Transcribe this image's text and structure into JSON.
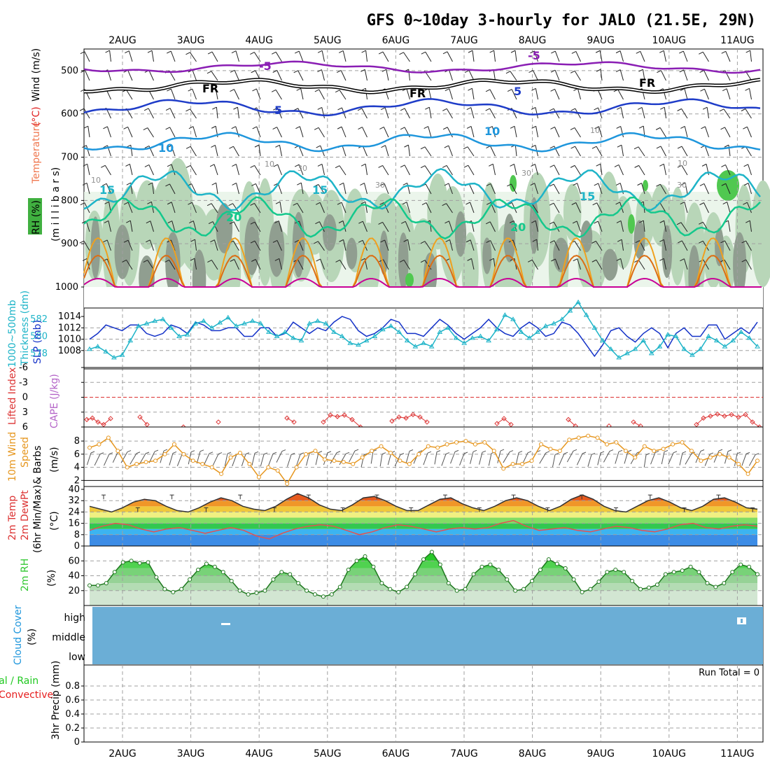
{
  "title": "GFS 0~10day 3-hourly for JALO (21.5E, 29N)",
  "colors": {
    "bg": "#ffffff",
    "frame": "#000000",
    "grid": "#a0a0a0",
    "rh_fill_light": "#e6f2e6",
    "rh_fill_mid": "#b8d6b8",
    "rh_fill_dark": "#909e90",
    "rh_fill_green": "#50c850",
    "iso_purple": "#8a1eb4",
    "iso_black": "#000000",
    "iso_blue": "#1e3cc8",
    "iso_sky": "#1e96dc",
    "iso_cyan": "#1eb4c8",
    "iso_teal": "#14c88c",
    "iso_orange": "#f0a01e",
    "iso_darkorange": "#dc6e14",
    "iso_magenta": "#c80096",
    "slp": "#1432c8",
    "thickness": "#1eb4c8",
    "lifted": "#dc3232",
    "cape": "#b464c8",
    "wind10": "#e6961e",
    "temp_top": "#c81414",
    "rh2m_green": "#32d232",
    "cloud_blue": "#6baed6",
    "precip_green": "#1ec81e",
    "precip_red": "#e61e1e"
  },
  "dates": [
    "2AUG",
    "3AUG",
    "4AUG",
    "5AUG",
    "6AUG",
    "7AUG",
    "8AUG",
    "9AUG",
    "10AUG",
    "11AUG"
  ],
  "panels": {
    "upper": {
      "label_rh": "RH (%)",
      "label_temp": "Temperature",
      "label_temp_unit": "(°C)",
      "label_wind": "Wind (m/s)",
      "label_pres": "(m i l l i b a r s)",
      "yticks": [
        "500",
        "600",
        "700",
        "800",
        "900",
        "1000"
      ],
      "contour_labels": {
        "m5": "-5",
        "fr": "FR",
        "p5": "5",
        "p10": "10",
        "p15": "15",
        "p20": "20",
        "rh10": "10",
        "rh30": "30"
      }
    },
    "slp": {
      "label_thick": "1000~500mb",
      "label_thick2": "Thickness (dm)",
      "label_slp": "SLP (mb)",
      "yticks_left": [
        "582",
        "580",
        "578"
      ],
      "yticks_right": [
        "1014",
        "1012",
        "1010",
        "1008"
      ]
    },
    "lifted": {
      "label_li": "Lifted Index",
      "label_cape": "CAPE (J/kg)",
      "yticks": [
        "-6",
        "-3",
        "0",
        "3",
        "6"
      ]
    },
    "wind10": {
      "label_1": "10m Wind",
      "label_2": "Speed",
      "label_3": "& Barbs",
      "label_unit": "(m/s)",
      "yticks": [
        "8",
        "6",
        "4",
        "2"
      ]
    },
    "temp": {
      "label_1": "2m Temp",
      "label_2": "2m DewPt",
      "label_3": "(6hr Min/Max)",
      "label_unit": "(°C)",
      "yticks": [
        "40",
        "32",
        "24",
        "16",
        "8",
        "0"
      ]
    },
    "rh2m": {
      "label_1": "2m RH",
      "label_unit": "(%)",
      "yticks": [
        "60",
        "40",
        "20"
      ]
    },
    "cloud": {
      "label_1": "Cloud Cover",
      "label_unit": "(%)",
      "levels": [
        "high",
        "middle",
        "low"
      ]
    },
    "precip": {
      "label_1": "Total / Rain",
      "label_2": "Convective",
      "label_3": "3hr Precip (mm)",
      "run_total": "Run Total = 0",
      "yticks": [
        "0.8",
        "0.6",
        "0.4",
        "0.2",
        "0"
      ]
    }
  },
  "chart_data": {
    "type": "line",
    "title": "GFS 0~10day 3-hourly for JALO (21.5E, 29N)",
    "x_categories": [
      "2AUG",
      "3AUG",
      "4AUG",
      "5AUG",
      "6AUG",
      "7AUG",
      "8AUG",
      "9AUG",
      "10AUG",
      "11AUG"
    ],
    "slp_mb": [
      1010,
      1011,
      1012.5,
      1012,
      1011.5,
      1012.5,
      1012.5,
      1011,
      1010.5,
      1011,
      1012.5,
      1012,
      1011,
      1013,
      1012.5,
      1011.5,
      1011.5,
      1012,
      1012,
      1010.5,
      1010.5,
      1012,
      1012,
      1010.5,
      1011,
      1013,
      1012,
      1011,
      1012,
      1011.5,
      1013,
      1014,
      1013.5,
      1011.5,
      1010.5,
      1011,
      1012,
      1013.5,
      1013,
      1011,
      1011,
      1010.5,
      1012,
      1013.5,
      1012.5,
      1011,
      1010,
      1011,
      1012,
      1013.5,
      1012,
      1011,
      1010.5,
      1012,
      1013,
      1012,
      1010.5,
      1011,
      1013,
      1012.5,
      1011,
      1009,
      1007,
      1009,
      1011.5,
      1012,
      1010.5,
      1009.5,
      1011,
      1012,
      1011,
      1008.5,
      1011,
      1012,
      1010.5,
      1010.5,
      1012.5,
      1012.5,
      1010,
      1011,
      1012,
      1011,
      1013
    ],
    "thickness_dm": [
      578.5,
      578.8,
      578.2,
      577.5,
      577.8,
      579.5,
      581.2,
      581.5,
      581.8,
      582,
      581,
      580,
      580.2,
      581.5,
      581.8,
      581,
      581.6,
      582.2,
      581.2,
      581.5,
      581.8,
      581.5,
      580.5,
      580,
      580.5,
      579.8,
      579.5,
      581.5,
      581.8,
      581.5,
      580.5,
      580,
      579.2,
      579,
      579.5,
      580,
      580.8,
      581.2,
      580.5,
      579.5,
      578.8,
      579.2,
      578.8,
      580.5,
      581,
      579.8,
      579.2,
      579.8,
      580,
      579.5,
      580.8,
      582.5,
      582,
      580.5,
      579.8,
      580.5,
      581.2,
      581.5,
      582,
      583,
      584,
      582.5,
      581,
      579.5,
      578.5,
      577.5,
      578,
      578.5,
      579.5,
      578,
      578.8,
      580.2,
      580,
      578.5,
      577.8,
      578.5,
      580,
      579.5,
      578.8,
      579.5,
      580.5,
      579.8,
      578.8
    ],
    "wind10_ms": [
      7,
      7.5,
      8.5,
      6.5,
      4,
      4.5,
      4.8,
      5,
      6,
      7.5,
      6,
      5,
      4.5,
      4,
      3,
      5.5,
      6.2,
      4.5,
      2.5,
      4,
      3.5,
      1.5,
      4,
      6,
      6.5,
      5.2,
      5,
      4.8,
      4.5,
      5.5,
      6.5,
      7.2,
      6.2,
      5,
      4.5,
      6,
      7.2,
      7,
      7.5,
      7.8,
      8,
      7.5,
      7.8,
      6.5,
      3.8,
      4.5,
      4.5,
      5,
      7.5,
      6.8,
      6.5,
      8.2,
      8.5,
      8.8,
      8.5,
      7.5,
      7.8,
      6.5,
      5.5,
      7.2,
      6.5,
      6.8,
      7.5,
      7.8,
      6.5,
      5,
      5.5,
      6,
      5.5,
      4.5,
      3,
      5
    ],
    "temp2m_c": [
      28,
      26,
      24,
      27,
      31,
      33,
      32,
      28,
      25,
      24,
      27,
      31,
      34,
      32,
      28,
      26,
      25,
      28,
      33,
      37,
      34,
      29,
      26,
      25,
      29,
      34,
      35,
      32,
      28,
      25,
      25,
      29,
      33,
      34,
      30,
      27,
      25,
      28,
      32,
      34,
      32,
      28,
      25,
      28,
      33,
      36,
      33,
      28,
      25,
      24,
      28,
      32,
      34,
      31,
      27,
      25,
      28,
      33,
      34,
      31,
      27,
      26
    ],
    "dewpt2m_c": [
      11,
      14,
      16,
      15,
      12,
      10,
      12,
      13,
      11,
      9,
      11,
      13,
      11,
      7,
      5,
      9,
      12,
      14,
      15,
      14,
      11,
      8,
      10,
      13,
      15,
      14,
      12,
      10,
      12,
      13,
      12,
      13,
      16,
      18,
      14,
      11,
      12,
      13,
      11,
      10,
      12,
      14,
      13,
      11,
      10,
      12,
      15,
      16,
      13,
      12,
      14,
      15,
      14
    ],
    "rh2m_pct": [
      27,
      27,
      30,
      45,
      58,
      60,
      57,
      58,
      38,
      22,
      18,
      22,
      35,
      48,
      56,
      52,
      45,
      33,
      20,
      15,
      17,
      20,
      35,
      45,
      42,
      30,
      20,
      15,
      12,
      15,
      25,
      48,
      60,
      66,
      52,
      30,
      22,
      18,
      25,
      42,
      62,
      72,
      55,
      30,
      20,
      22,
      42,
      52,
      55,
      48,
      35,
      20,
      22,
      33,
      48,
      62,
      56,
      50,
      35,
      18,
      22,
      32,
      45,
      48,
      45,
      33,
      22,
      24,
      28,
      42,
      45,
      47,
      52,
      45,
      30,
      25,
      30,
      45,
      55,
      52,
      42
    ],
    "lifted_index": [
      4.5,
      4.2,
      5,
      5.5,
      4.3,
      6,
      6,
      5.5,
      6,
      6,
      4.8,
      5.8,
      5.2,
      4,
      4.2,
      5,
      5.8,
      4.6,
      3.8,
      4.3,
      5.8,
      5.2,
      5.8,
      5.2,
      4,
      3.6,
      4,
      5.2,
      5.8,
      5.5,
      4.8,
      4.2,
      3.5,
      3.9,
      3.6,
      4.5,
      5.8
    ],
    "precip_mm": [
      0,
      0,
      0,
      0,
      0,
      0,
      0,
      0,
      0,
      0
    ],
    "ylim_slp": [
      1006,
      1015
    ],
    "ylim_thickness": [
      577,
      583
    ],
    "ylim_wind10": [
      0,
      9
    ],
    "ylim_temp": [
      0,
      40
    ],
    "ylim_rh2m": [
      0,
      80
    ],
    "ylim_precip": [
      0,
      1
    ],
    "grid": true
  }
}
